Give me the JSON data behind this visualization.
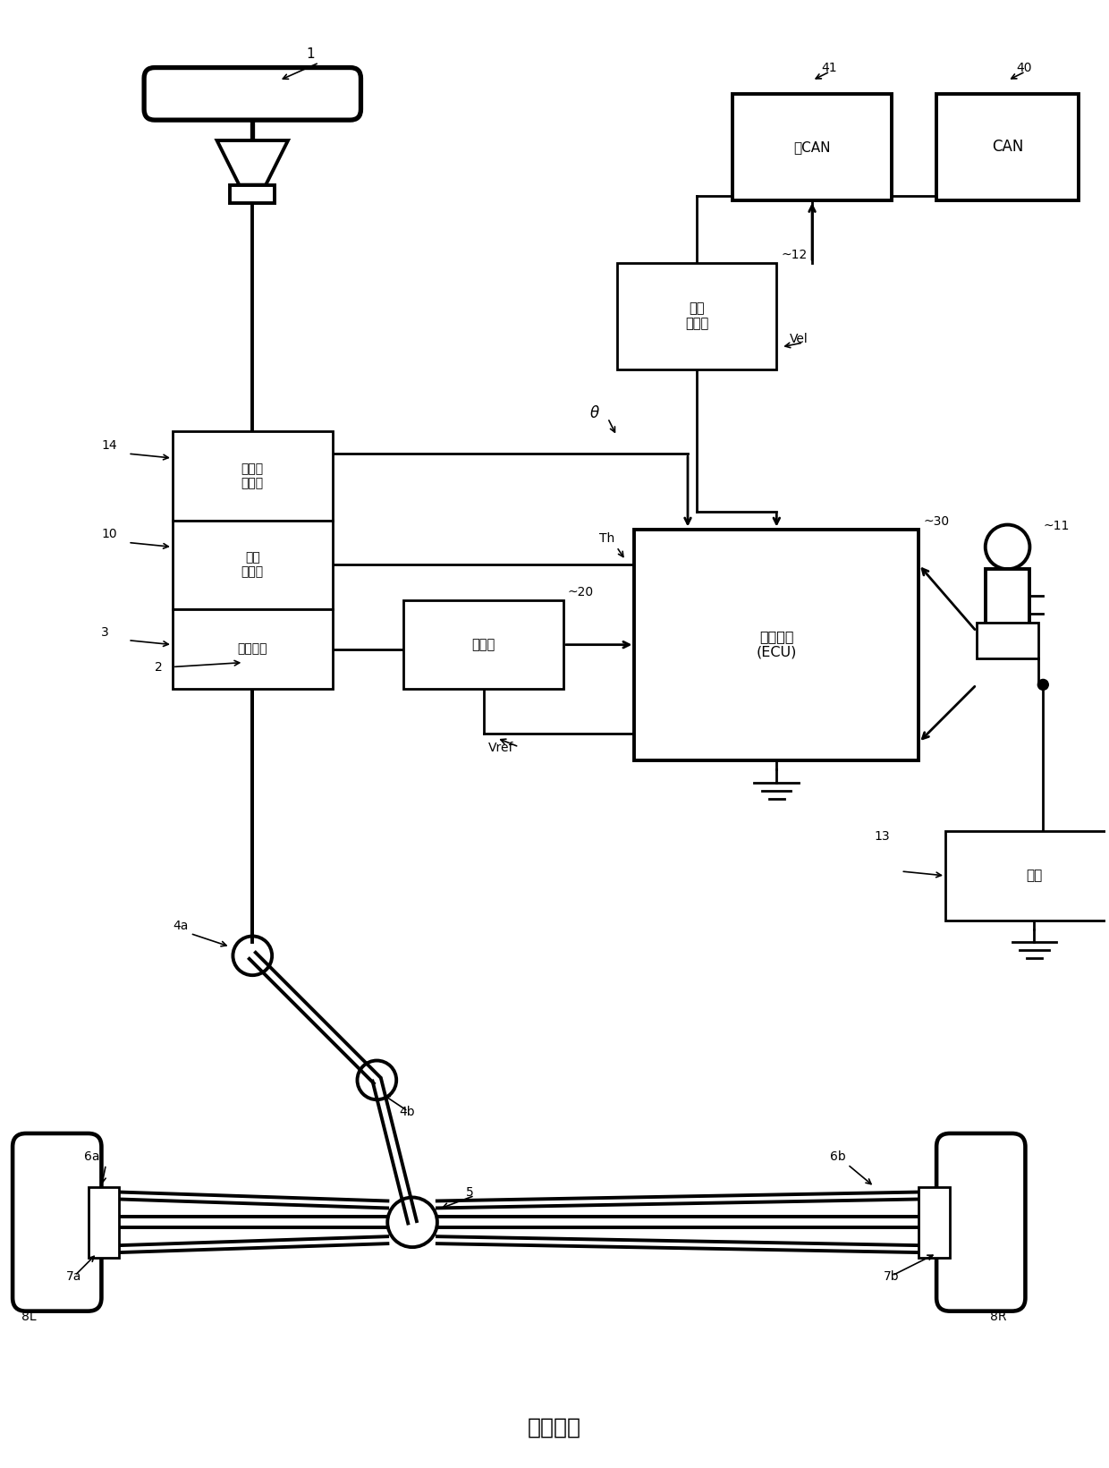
{
  "title": "现有技术",
  "bg_color": "#ffffff",
  "line_color": "#000000",
  "fig_width": 12.4,
  "fig_height": 16.41,
  "box_texts": {
    "angle_sensor": "转向角\n传感器",
    "torque_sensor": "扭矩\n传感器",
    "gear": "减速齿轮",
    "motor": "电动机",
    "ecu": "控制单元\n(ECU)",
    "speed_sensor": "车速\n传感器",
    "battery": "电池",
    "can": "CAN",
    "noncan": "非CAN"
  },
  "labels": {
    "1": "1",
    "2": "2",
    "3": "3",
    "4a": "4a",
    "4b": "4b",
    "5": "5",
    "6a": "6a",
    "6b": "6b",
    "7a": "7a",
    "7b": "7b",
    "8L": "8L",
    "8R": "8R",
    "10": "10",
    "11": "11",
    "12": "12",
    "13": "13",
    "14": "14",
    "20": "20",
    "30": "30",
    "40": "40",
    "41": "41"
  },
  "signals": {
    "theta": "θ",
    "th": "Th",
    "vel": "Vel",
    "vref": "Vref"
  }
}
